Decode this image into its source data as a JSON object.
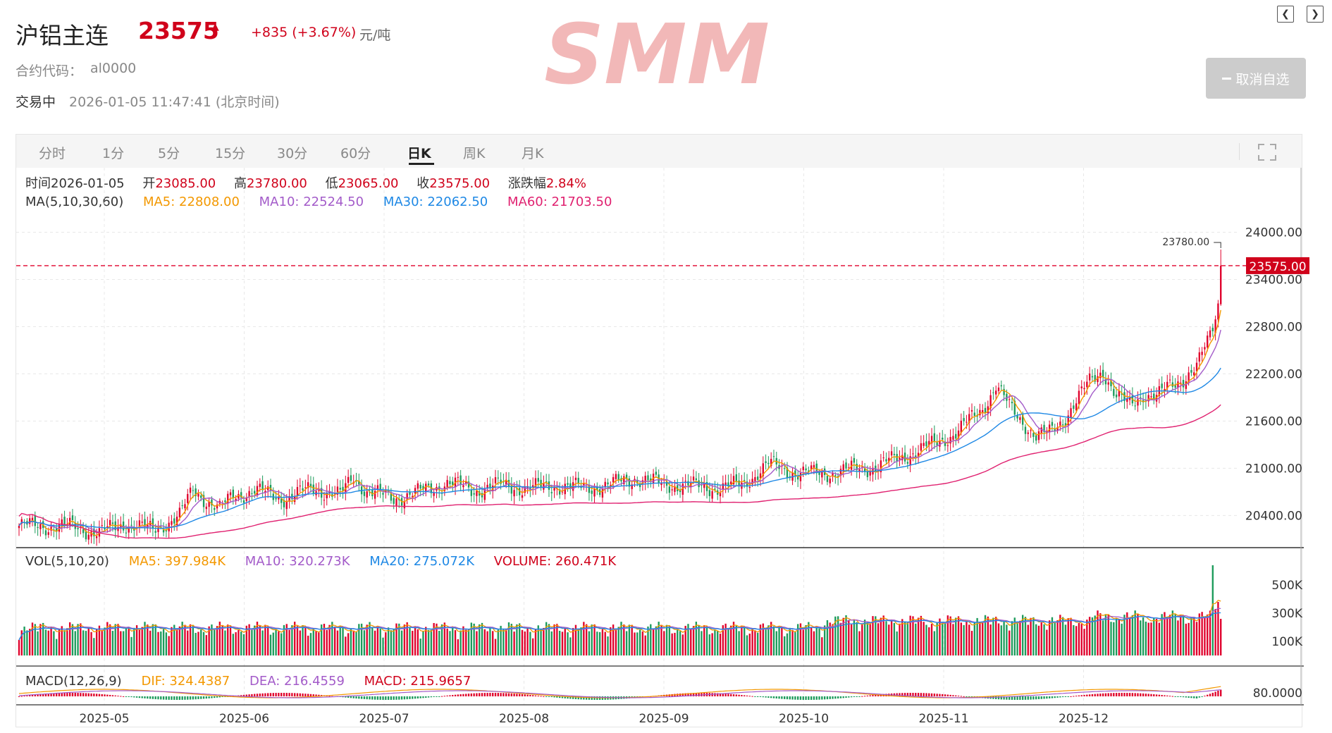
{
  "header": {
    "title": "沪铝主连",
    "price": "23575",
    "change": "+835 (+3.67%)",
    "unit": "元/吨",
    "code_label": "合约代码：",
    "code": "al0000",
    "status": "交易中",
    "time": "2026-01-05 11:47:41 (北京时间)",
    "unfav": "取消自选",
    "watermark": "SMM"
  },
  "tabs": [
    "分时",
    "1分",
    "5分",
    "15分",
    "30分",
    "60分",
    "日K",
    "周K",
    "月K"
  ],
  "active_tab": "日K",
  "ohlc": {
    "time_label": "时间",
    "time": "2026-01-05",
    "open_label": "开",
    "open": "23085.00",
    "high_label": "高",
    "high": "23780.00",
    "low_label": "低",
    "low": "23065.00",
    "close_label": "收",
    "close": "23575.00",
    "chg_label": "涨跌幅",
    "chg": "2.84%"
  },
  "ma_info": {
    "label": "MA(5,10,30,60)",
    "ma5": "MA5: 22808.00",
    "ma10": "MA10: 22524.50",
    "ma30": "MA30: 22062.50",
    "ma60": "MA60: 21703.50"
  },
  "vol_info": {
    "label": "VOL(5,10,20)",
    "ma5": "MA5: 397.984K",
    "ma10": "MA10: 320.273K",
    "ma20": "MA20: 275.072K",
    "volume": "VOLUME: 260.471K"
  },
  "macd_info": {
    "label": "MACD(12,26,9)",
    "dif": "DIF: 324.4387",
    "dea": "DEA: 216.4559",
    "macd": "MACD: 215.9657"
  },
  "colors": {
    "up": "#e0002b",
    "down": "#1c9b5b",
    "ma5": "#f39800",
    "ma10": "#a35bc9",
    "ma30": "#1e88e5",
    "ma60": "#e02170"
  },
  "chart_data": {
    "type": "candlestick",
    "ylim": [
      20000,
      24300
    ],
    "yticks": [
      "24000.00",
      "23400.00",
      "22800.00",
      "22200.00",
      "21600.00",
      "21000.00",
      "20400.00"
    ],
    "price_tag": "23575.00",
    "high_marker": "23780.00",
    "xticks": [
      "2025-05",
      "2025-06",
      "2025-07",
      "2025-08",
      "2025-09",
      "2025-10",
      "2025-11",
      "2025-12"
    ],
    "vol_ticks": [
      "500K",
      "300K",
      "100K"
    ],
    "vol_ylim": [
      0,
      650
    ],
    "macd_tick": "80.0000",
    "anchors": [
      [
        0,
        20270
      ],
      [
        20,
        20260
      ],
      [
        30,
        20180
      ],
      [
        40,
        20300
      ],
      [
        50,
        20210
      ],
      [
        60,
        20400
      ],
      [
        65,
        20720
      ],
      [
        70,
        20600
      ],
      [
        75,
        20480
      ],
      [
        80,
        20650
      ],
      [
        88,
        20720
      ],
      [
        95,
        20650
      ],
      [
        100,
        20620
      ],
      [
        110,
        20750
      ],
      [
        120,
        20650
      ],
      [
        125,
        20900
      ],
      [
        130,
        20700
      ],
      [
        140,
        20620
      ],
      [
        150,
        20700
      ],
      [
        160,
        20820
      ],
      [
        170,
        20720
      ],
      [
        180,
        20790
      ],
      [
        190,
        20740
      ],
      [
        200,
        20780
      ],
      [
        210,
        20750
      ],
      [
        220,
        20780
      ],
      [
        230,
        20880
      ],
      [
        240,
        20800
      ],
      [
        250,
        20780
      ],
      [
        260,
        20750
      ],
      [
        270,
        20790
      ],
      [
        280,
        21050
      ],
      [
        290,
        20950
      ],
      [
        300,
        20930
      ],
      [
        310,
        20980
      ],
      [
        320,
        21020
      ],
      [
        330,
        21150
      ],
      [
        340,
        21280
      ],
      [
        350,
        21450
      ],
      [
        360,
        21760
      ],
      [
        365,
        22050
      ],
      [
        370,
        21780
      ],
      [
        375,
        21600
      ],
      [
        380,
        21400
      ],
      [
        385,
        21450
      ],
      [
        390,
        21620
      ],
      [
        395,
        21850
      ],
      [
        400,
        22100
      ],
      [
        405,
        22250
      ],
      [
        410,
        21900
      ],
      [
        415,
        21800
      ],
      [
        420,
        21950
      ],
      [
        425,
        21900
      ],
      [
        430,
        22050
      ],
      [
        435,
        22150
      ],
      [
        440,
        22280
      ],
      [
        444,
        22600
      ],
      [
        446,
        22800
      ],
      [
        448,
        23100
      ],
      [
        449,
        23575
      ]
    ],
    "last_candle": {
      "open": 23085,
      "high": 23780,
      "low": 23065,
      "close": 23575
    }
  }
}
